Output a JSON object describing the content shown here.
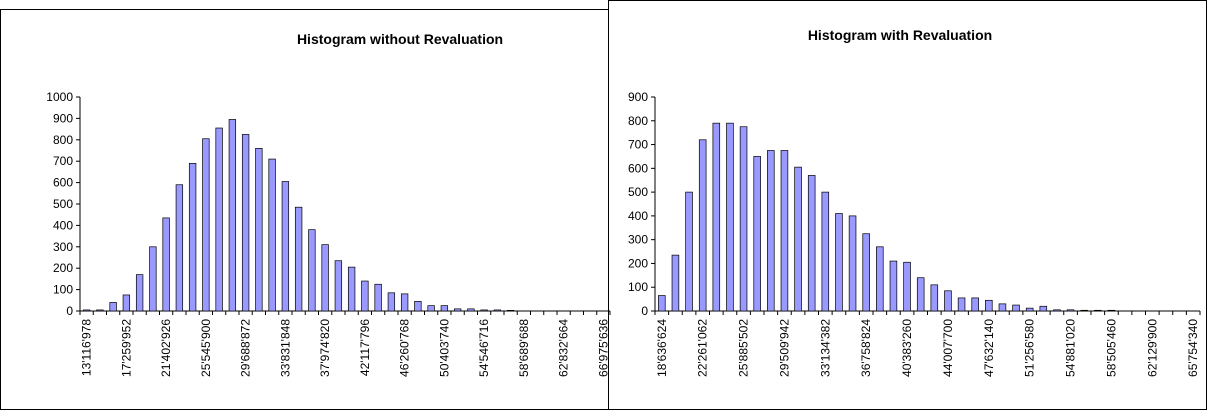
{
  "chart_data": [
    {
      "type": "bar",
      "title": "Histogram without Revaluation",
      "color": "#9999ff",
      "categories": [
        "13'116'978",
        null,
        null,
        "17'259'952",
        null,
        null,
        "21'402'926",
        null,
        null,
        "25'545'900",
        null,
        null,
        "29'688'872",
        null,
        null,
        "33'831'848",
        null,
        null,
        "37'974'820",
        null,
        null,
        "42'117'796",
        null,
        null,
        "46'260'768",
        null,
        null,
        "50'403'740",
        null,
        null,
        "54'546'716",
        null,
        null,
        "58'689'688",
        null,
        null,
        "62'832'664",
        null,
        null,
        "66'975'636"
      ],
      "values": [
        5,
        5,
        40,
        75,
        170,
        300,
        435,
        590,
        690,
        805,
        855,
        895,
        825,
        760,
        710,
        605,
        485,
        380,
        310,
        235,
        205,
        140,
        125,
        85,
        80,
        45,
        25,
        25,
        10,
        10,
        5,
        5,
        3,
        0,
        0,
        0,
        0,
        0,
        0,
        0
      ],
      "ylim": [
        0,
        1000
      ],
      "yticks": [
        0,
        100,
        200,
        300,
        400,
        500,
        600,
        700,
        800,
        900,
        1000
      ]
    },
    {
      "type": "bar",
      "title": "Histogram with Revaluation",
      "color": "#9999ff",
      "categories": [
        "18'636'624",
        null,
        null,
        "22'261'062",
        null,
        null,
        "25'885'502",
        null,
        null,
        "29'509'942",
        null,
        null,
        "33'134'382",
        null,
        null,
        "36'758'824",
        null,
        null,
        "40'383'260",
        null,
        null,
        "44'007'700",
        null,
        null,
        "47'632'140",
        null,
        null,
        "51'256'580",
        null,
        null,
        "54'881'020",
        null,
        null,
        "58'505'460",
        null,
        null,
        "62'129'900",
        null,
        null,
        "65'754'340"
      ],
      "values": [
        65,
        235,
        500,
        720,
        790,
        790,
        775,
        650,
        675,
        675,
        605,
        570,
        500,
        410,
        400,
        325,
        270,
        210,
        205,
        140,
        110,
        85,
        55,
        55,
        45,
        30,
        25,
        12,
        20,
        5,
        5,
        3,
        3,
        3,
        0,
        0,
        0,
        0,
        0,
        0
      ],
      "ylim": [
        0,
        900
      ],
      "yticks": [
        0,
        100,
        200,
        300,
        400,
        500,
        600,
        700,
        800,
        900
      ]
    }
  ]
}
